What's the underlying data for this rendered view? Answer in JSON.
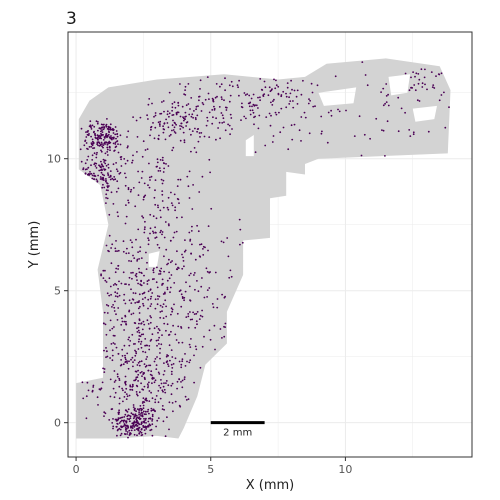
{
  "panel": {
    "tag": "3"
  },
  "chart_data": {
    "type": "scatter",
    "title": "",
    "xlabel": "X (mm)",
    "ylabel": "Y (mm)",
    "xlim": [
      -0.3,
      14.7
    ],
    "ylim": [
      -1.3,
      14.8
    ],
    "x_ticks": [
      0,
      5,
      10
    ],
    "y_ticks": [
      0,
      5,
      10
    ],
    "grid": true,
    "legend": "none",
    "colors": {
      "tissue": "#d3d3d3",
      "highlight": "#4b0055",
      "grid": "#ebebeb",
      "panel_border": "#333333",
      "scalebar": "#000000"
    },
    "scale_bar": {
      "label": "2 mm",
      "x_start": 5.0,
      "x_end": 7.0,
      "y": 0.0
    },
    "tissue_outline": [
      [
        0.0,
        -0.6
      ],
      [
        0.0,
        1.5
      ],
      [
        1.0,
        1.7
      ],
      [
        1.0,
        4.2
      ],
      [
        0.8,
        5.8
      ],
      [
        1.2,
        7.5
      ],
      [
        0.9,
        9.0
      ],
      [
        0.1,
        9.6
      ],
      [
        0.1,
        11.5
      ],
      [
        0.5,
        12.2
      ],
      [
        1.2,
        12.7
      ],
      [
        3.0,
        13.0
      ],
      [
        5.5,
        13.2
      ],
      [
        7.5,
        13.0
      ],
      [
        8.5,
        13.1
      ],
      [
        9.3,
        13.6
      ],
      [
        11.5,
        13.8
      ],
      [
        13.5,
        13.5
      ],
      [
        13.9,
        12.6
      ],
      [
        13.8,
        10.2
      ],
      [
        9.0,
        10.0
      ],
      [
        8.5,
        9.8
      ],
      [
        8.5,
        9.4
      ],
      [
        7.8,
        9.5
      ],
      [
        7.8,
        8.6
      ],
      [
        7.2,
        8.5
      ],
      [
        7.2,
        7.0
      ],
      [
        6.2,
        6.9
      ],
      [
        6.2,
        5.6
      ],
      [
        5.6,
        4.2
      ],
      [
        5.6,
        3.0
      ],
      [
        4.8,
        2.2
      ],
      [
        4.5,
        1.0
      ],
      [
        4.0,
        -0.2
      ],
      [
        3.8,
        -0.6
      ],
      [
        3.0,
        -0.5
      ],
      [
        1.5,
        -0.6
      ],
      [
        0.0,
        -0.6
      ]
    ],
    "tissue_holes": [
      [
        [
          11.6,
          13.1
        ],
        [
          12.4,
          13.2
        ],
        [
          12.3,
          12.5
        ],
        [
          11.7,
          12.4
        ]
      ],
      [
        [
          9.0,
          12.5
        ],
        [
          10.4,
          12.7
        ],
        [
          10.3,
          12.1
        ],
        [
          9.2,
          12.0
        ]
      ],
      [
        [
          6.3,
          10.7
        ],
        [
          6.6,
          10.9
        ],
        [
          6.6,
          10.1
        ],
        [
          6.3,
          10.1
        ]
      ],
      [
        [
          2.7,
          6.4
        ],
        [
          3.1,
          6.5
        ],
        [
          3.0,
          5.9
        ],
        [
          2.7,
          5.9
        ]
      ],
      [
        [
          12.5,
          11.9
        ],
        [
          13.4,
          12.0
        ],
        [
          13.3,
          11.5
        ],
        [
          12.6,
          11.4
        ]
      ]
    ],
    "point_clusters": [
      {
        "cx": 2.2,
        "cy": 0.0,
        "sx": 0.45,
        "sy": 0.35,
        "n": 220
      },
      {
        "cx": 2.5,
        "cy": 1.5,
        "sx": 0.9,
        "sy": 0.7,
        "n": 230
      },
      {
        "cx": 2.5,
        "cy": 3.4,
        "sx": 1.0,
        "sy": 1.0,
        "n": 200
      },
      {
        "cx": 2.0,
        "cy": 5.2,
        "sx": 1.0,
        "sy": 0.9,
        "n": 130
      },
      {
        "cx": 3.2,
        "cy": 7.0,
        "sx": 1.3,
        "sy": 1.1,
        "n": 120
      },
      {
        "cx": 1.0,
        "cy": 10.8,
        "sx": 0.4,
        "sy": 0.3,
        "n": 170
      },
      {
        "cx": 0.7,
        "cy": 9.3,
        "sx": 0.5,
        "sy": 0.5,
        "n": 110
      },
      {
        "cx": 2.5,
        "cy": 9.5,
        "sx": 1.1,
        "sy": 1.1,
        "n": 120
      },
      {
        "cx": 3.7,
        "cy": 11.4,
        "sx": 0.6,
        "sy": 0.5,
        "n": 110
      },
      {
        "cx": 5.8,
        "cy": 12.0,
        "sx": 1.2,
        "sy": 0.6,
        "n": 130
      },
      {
        "cx": 4.5,
        "cy": 5.0,
        "sx": 0.8,
        "sy": 1.3,
        "n": 70
      },
      {
        "cx": 7.5,
        "cy": 12.6,
        "sx": 0.8,
        "sy": 0.3,
        "n": 40
      },
      {
        "cx": 10.5,
        "cy": 11.5,
        "sx": 2.0,
        "sy": 1.2,
        "n": 70
      },
      {
        "cx": 13.0,
        "cy": 13.0,
        "sx": 0.4,
        "sy": 0.4,
        "n": 30
      }
    ]
  }
}
